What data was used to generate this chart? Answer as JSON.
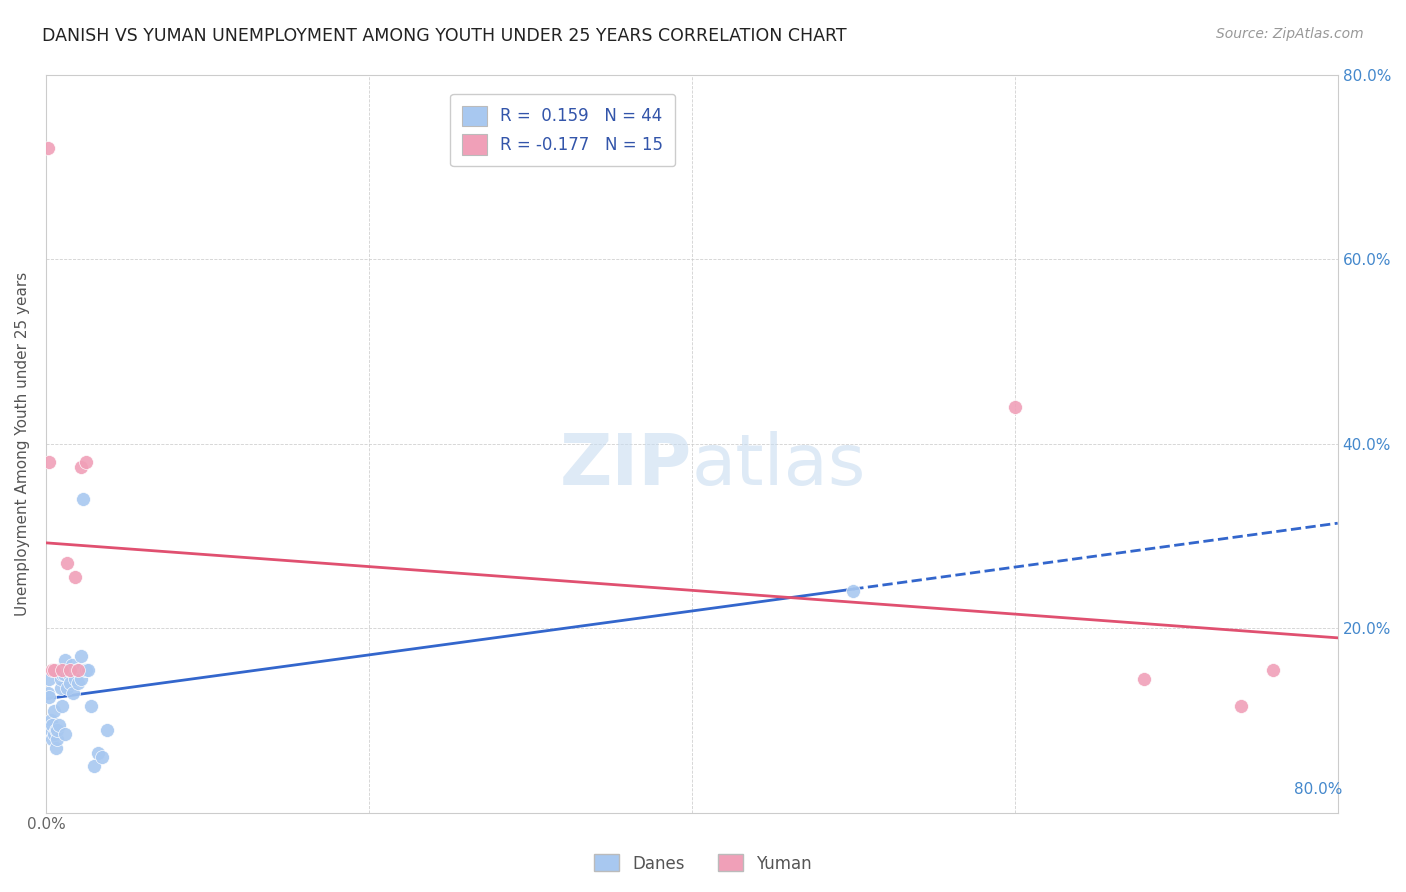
{
  "title": "DANISH VS YUMAN UNEMPLOYMENT AMONG YOUTH UNDER 25 YEARS CORRELATION CHART",
  "source": "Source: ZipAtlas.com",
  "ylabel": "Unemployment Among Youth under 25 years",
  "xlim": [
    0.0,
    0.8
  ],
  "ylim": [
    0.0,
    0.8
  ],
  "xticks": [
    0.0,
    0.2,
    0.4,
    0.6,
    0.8
  ],
  "yticks": [
    0.0,
    0.2,
    0.4,
    0.6,
    0.8
  ],
  "xtick_labels_bottom": [
    "0.0%",
    "",
    "",
    "",
    ""
  ],
  "xtick_labels_right": [
    "80.0%"
  ],
  "ytick_labels_right": [
    "20.0%",
    "40.0%",
    "60.0%",
    "80.0%"
  ],
  "danes_color": "#A8C8F0",
  "yuman_color": "#F0A0B8",
  "danes_line_color": "#3366CC",
  "yuman_line_color": "#E05070",
  "danes_R": 0.159,
  "danes_N": 44,
  "yuman_R": -0.177,
  "yuman_N": 15,
  "danes_x": [
    0.001,
    0.002,
    0.002,
    0.003,
    0.003,
    0.004,
    0.004,
    0.005,
    0.005,
    0.006,
    0.006,
    0.007,
    0.007,
    0.008,
    0.008,
    0.009,
    0.009,
    0.01,
    0.01,
    0.011,
    0.012,
    0.012,
    0.013,
    0.014,
    0.015,
    0.015,
    0.016,
    0.017,
    0.018,
    0.019,
    0.02,
    0.021,
    0.022,
    0.022,
    0.023,
    0.024,
    0.025,
    0.026,
    0.028,
    0.03,
    0.032,
    0.035,
    0.038,
    0.5
  ],
  "danes_y": [
    0.13,
    0.125,
    0.145,
    0.09,
    0.1,
    0.08,
    0.095,
    0.11,
    0.085,
    0.07,
    0.09,
    0.08,
    0.09,
    0.095,
    0.155,
    0.135,
    0.145,
    0.15,
    0.115,
    0.15,
    0.085,
    0.165,
    0.135,
    0.15,
    0.14,
    0.155,
    0.16,
    0.13,
    0.145,
    0.155,
    0.14,
    0.155,
    0.17,
    0.145,
    0.34,
    0.155,
    0.155,
    0.155,
    0.115,
    0.05,
    0.065,
    0.06,
    0.09,
    0.24
  ],
  "yuman_x": [
    0.001,
    0.002,
    0.004,
    0.005,
    0.01,
    0.013,
    0.015,
    0.018,
    0.02,
    0.022,
    0.025,
    0.6,
    0.68,
    0.74,
    0.76
  ],
  "yuman_y": [
    0.72,
    0.38,
    0.155,
    0.155,
    0.155,
    0.27,
    0.155,
    0.255,
    0.155,
    0.375,
    0.38,
    0.44,
    0.145,
    0.115,
    0.155
  ]
}
